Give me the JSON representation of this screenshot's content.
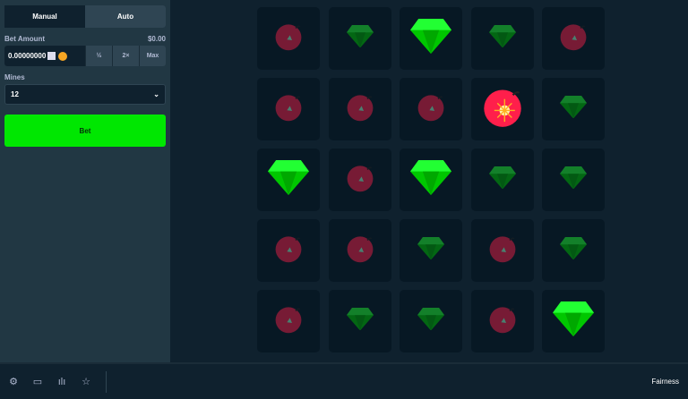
{
  "sidebar": {
    "tabs": [
      "Manual",
      "Auto"
    ],
    "bet_amount_label": "Bet Amount",
    "bet_amount_usd": "$0.00",
    "bet_value": "0.00000000",
    "half": "½",
    "double": "2×",
    "max": "Max",
    "mines_label": "Mines",
    "mines_value": "12",
    "bet_button": "Bet"
  },
  "grid": [
    [
      "mine",
      "gem",
      "gem-revealed",
      "gem",
      "mine"
    ],
    [
      "mine",
      "mine",
      "mine",
      "mine-exploded",
      "gem"
    ],
    [
      "gem-revealed",
      "mine",
      "gem-revealed",
      "gem",
      "gem"
    ],
    [
      "mine",
      "mine",
      "gem",
      "mine",
      "gem"
    ],
    [
      "mine",
      "gem",
      "gem",
      "mine",
      "gem-revealed"
    ]
  ],
  "colors": {
    "accent": "#00e701",
    "mine": "#ff1f4b",
    "gem": "#00e701"
  },
  "footer": {
    "icons": [
      "gear-icon",
      "theater-icon",
      "stats-icon",
      "star-icon"
    ],
    "fairness": "Fairness"
  }
}
